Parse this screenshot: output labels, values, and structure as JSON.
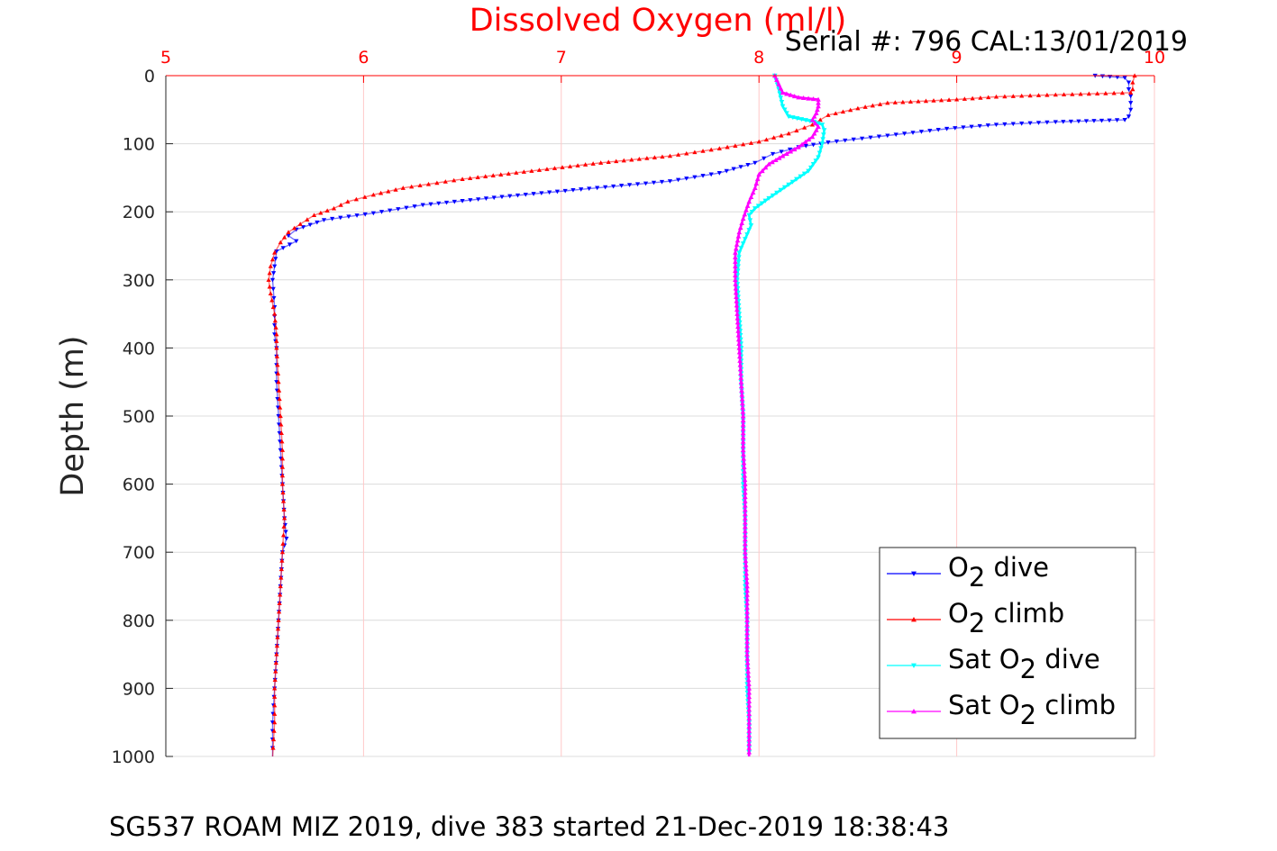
{
  "colors": {
    "axis_top": "#ff0000",
    "grid_x": "#ffc8c8",
    "grid_y": "#dcdcdc",
    "o2_dive": "#0000ff",
    "o2_climb": "#ff0000",
    "sat_o2_dive": "#00ffff",
    "sat_o2_climb": "#ff00ff"
  },
  "header": {
    "serial": "Serial #: 796  CAL:13/01/2019"
  },
  "footer": {
    "caption": "SG537 ROAM MIZ 2019, dive 383 started 21-Dec-2019 18:38:43"
  },
  "chart_data": {
    "type": "line",
    "title": "",
    "xlabel": "Dissolved Oxygen (ml/l)",
    "ylabel": "Depth (m)",
    "xlim": [
      5,
      10
    ],
    "ylim": [
      0,
      1000
    ],
    "x_axis_location": "top",
    "y_axis_reversed": true,
    "grid": true,
    "x_ticks": [
      "5",
      "6",
      "7",
      "8",
      "9",
      "10"
    ],
    "y_ticks": [
      "0",
      "100",
      "200",
      "300",
      "400",
      "500",
      "600",
      "700",
      "800",
      "900",
      "1000"
    ],
    "legend_position": "bottom-right",
    "series": [
      {
        "name": "O2 dive",
        "legend_main": "O",
        "legend_sub": "2",
        "legend_tail": " dive",
        "color": "#0000ff",
        "marker": "triangle-down",
        "points": [
          [
            9.7,
            0
          ],
          [
            9.85,
            3
          ],
          [
            9.87,
            10
          ],
          [
            9.87,
            20
          ],
          [
            9.88,
            30
          ],
          [
            9.88,
            40
          ],
          [
            9.88,
            50
          ],
          [
            9.87,
            60
          ],
          [
            9.85,
            65
          ],
          [
            9.5,
            68
          ],
          [
            9.2,
            72
          ],
          [
            8.95,
            78
          ],
          [
            8.65,
            88
          ],
          [
            8.35,
            98
          ],
          [
            8.2,
            105
          ],
          [
            8.07,
            115
          ],
          [
            7.98,
            128
          ],
          [
            7.8,
            143
          ],
          [
            7.55,
            155
          ],
          [
            7.1,
            167
          ],
          [
            6.7,
            178
          ],
          [
            6.3,
            190
          ],
          [
            6.05,
            202
          ],
          [
            5.8,
            212
          ],
          [
            5.66,
            226
          ],
          [
            5.62,
            235
          ],
          [
            5.66,
            243
          ],
          [
            5.56,
            258
          ],
          [
            5.55,
            280
          ],
          [
            5.54,
            300
          ],
          [
            5.55,
            340
          ],
          [
            5.55,
            380
          ],
          [
            5.56,
            400
          ],
          [
            5.56,
            450
          ],
          [
            5.57,
            500
          ],
          [
            5.58,
            550
          ],
          [
            5.59,
            600
          ],
          [
            5.6,
            650
          ],
          [
            5.61,
            680
          ],
          [
            5.59,
            700
          ],
          [
            5.58,
            750
          ],
          [
            5.57,
            800
          ],
          [
            5.56,
            850
          ],
          [
            5.55,
            900
          ],
          [
            5.54,
            950
          ],
          [
            5.54,
            1000
          ]
        ]
      },
      {
        "name": "O2 climb",
        "legend_main": "O",
        "legend_sub": "2",
        "legend_tail": " climb",
        "color": "#ff0000",
        "marker": "triangle-up",
        "points": [
          [
            9.9,
            0
          ],
          [
            9.89,
            10
          ],
          [
            9.89,
            20
          ],
          [
            9.88,
            25
          ],
          [
            9.5,
            28
          ],
          [
            9.2,
            31
          ],
          [
            9.0,
            35
          ],
          [
            8.65,
            40
          ],
          [
            8.5,
            48
          ],
          [
            8.35,
            58
          ],
          [
            8.27,
            72
          ],
          [
            8.15,
            85
          ],
          [
            8.0,
            97
          ],
          [
            7.8,
            107
          ],
          [
            7.55,
            118
          ],
          [
            7.2,
            128
          ],
          [
            6.85,
            140
          ],
          [
            6.5,
            152
          ],
          [
            6.2,
            165
          ],
          [
            6.05,
            175
          ],
          [
            5.92,
            185
          ],
          [
            5.85,
            195
          ],
          [
            5.75,
            205
          ],
          [
            5.68,
            218
          ],
          [
            5.62,
            230
          ],
          [
            5.58,
            245
          ],
          [
            5.55,
            260
          ],
          [
            5.53,
            280
          ],
          [
            5.52,
            300
          ],
          [
            5.53,
            320
          ],
          [
            5.55,
            350
          ],
          [
            5.56,
            380
          ],
          [
            5.56,
            400
          ],
          [
            5.57,
            450
          ],
          [
            5.58,
            500
          ],
          [
            5.59,
            550
          ],
          [
            5.59,
            600
          ],
          [
            5.6,
            650
          ],
          [
            5.59,
            700
          ],
          [
            5.58,
            750
          ],
          [
            5.57,
            800
          ],
          [
            5.56,
            850
          ],
          [
            5.55,
            900
          ],
          [
            5.55,
            950
          ],
          [
            5.54,
            1000
          ]
        ]
      },
      {
        "name": "Sat O2 dive",
        "legend_main": "Sat O",
        "legend_sub": "2",
        "legend_tail": " dive",
        "color": "#00ffff",
        "marker": "triangle-down",
        "points": [
          [
            8.08,
            0
          ],
          [
            8.1,
            20
          ],
          [
            8.12,
            45
          ],
          [
            8.15,
            60
          ],
          [
            8.28,
            68
          ],
          [
            8.32,
            72
          ],
          [
            8.33,
            80
          ],
          [
            8.32,
            100
          ],
          [
            8.3,
            120
          ],
          [
            8.25,
            140
          ],
          [
            8.15,
            160
          ],
          [
            8.05,
            180
          ],
          [
            7.98,
            195
          ],
          [
            7.95,
            205
          ],
          [
            7.96,
            220
          ],
          [
            7.93,
            240
          ],
          [
            7.9,
            260
          ],
          [
            7.89,
            300
          ],
          [
            7.9,
            350
          ],
          [
            7.91,
            400
          ],
          [
            7.91,
            450
          ],
          [
            7.92,
            500
          ],
          [
            7.92,
            550
          ],
          [
            7.92,
            600
          ],
          [
            7.93,
            650
          ],
          [
            7.93,
            700
          ],
          [
            7.93,
            750
          ],
          [
            7.94,
            800
          ],
          [
            7.94,
            850
          ],
          [
            7.94,
            900
          ],
          [
            7.95,
            950
          ],
          [
            7.95,
            1000
          ]
        ]
      },
      {
        "name": "Sat O2 climb",
        "legend_main": "Sat O",
        "legend_sub": "2",
        "legend_tail": " climb",
        "color": "#ff00ff",
        "marker": "triangle-up",
        "points": [
          [
            8.08,
            0
          ],
          [
            8.12,
            25
          ],
          [
            8.2,
            32
          ],
          [
            8.3,
            35
          ],
          [
            8.3,
            45
          ],
          [
            8.29,
            55
          ],
          [
            8.27,
            65
          ],
          [
            8.3,
            75
          ],
          [
            8.27,
            90
          ],
          [
            8.2,
            105
          ],
          [
            8.12,
            118
          ],
          [
            8.05,
            130
          ],
          [
            8.0,
            145
          ],
          [
            7.98,
            165
          ],
          [
            7.95,
            185
          ],
          [
            7.92,
            210
          ],
          [
            7.9,
            230
          ],
          [
            7.88,
            260
          ],
          [
            7.88,
            300
          ],
          [
            7.89,
            350
          ],
          [
            7.9,
            400
          ],
          [
            7.91,
            450
          ],
          [
            7.92,
            500
          ],
          [
            7.92,
            550
          ],
          [
            7.93,
            600
          ],
          [
            7.93,
            650
          ],
          [
            7.93,
            700
          ],
          [
            7.94,
            750
          ],
          [
            7.94,
            800
          ],
          [
            7.94,
            850
          ],
          [
            7.95,
            900
          ],
          [
            7.95,
            950
          ],
          [
            7.95,
            1000
          ]
        ]
      }
    ]
  }
}
